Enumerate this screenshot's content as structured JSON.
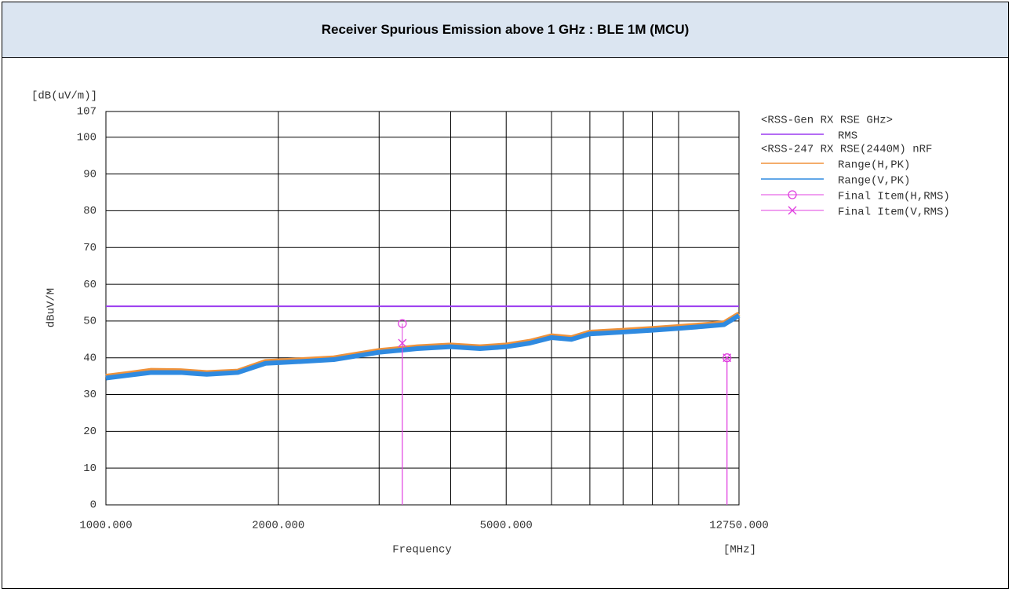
{
  "chart_data": {
    "type": "line",
    "title": "Receiver Spurious Emission above 1 GHz : BLE 1M (MCU)",
    "y_unit": "[dB(uV/m)]",
    "y_label": "dBuV/M",
    "x_label": "Frequency",
    "x_unit": "[MHz]",
    "x_log": true,
    "xlim": [
      1000,
      12750
    ],
    "xticks": [
      {
        "value": 1000,
        "label": "1000.000"
      },
      {
        "value": 2000,
        "label": "2000.000"
      },
      {
        "value": 5000,
        "label": "5000.000"
      },
      {
        "value": 12750,
        "label": "12750.000"
      }
    ],
    "xgrid": [
      3000,
      4000,
      6000,
      7000,
      8000,
      9000,
      10000
    ],
    "ylim": [
      0,
      107
    ],
    "yticks": [
      0,
      10,
      20,
      30,
      40,
      50,
      60,
      70,
      80,
      90,
      100,
      107
    ],
    "grid": true,
    "groups": [
      {
        "title": "<RSS-Gen RX RSE GHz>",
        "series": [
          {
            "name": "RMS",
            "kind": "line",
            "color": "#9b3cf0",
            "width": 2,
            "x": [
              1000,
              12750
            ],
            "values": [
              54,
              54
            ]
          }
        ]
      },
      {
        "title": "<RSS-247 RX RSE(2440M) nRF",
        "series": [
          {
            "name": "Range(H,PK)",
            "kind": "line",
            "color": "#f0923a",
            "width": 6,
            "x": [
              1000,
              1100,
              1200,
              1350,
              1500,
              1700,
              1900,
              2200,
              2500,
              3000,
              3500,
              4000,
              4500,
              5000,
              5500,
              6000,
              6500,
              7000,
              8000,
              9000,
              10000,
              11000,
              12000,
              12750
            ],
            "values": [
              35,
              35.8,
              36.6,
              36.5,
              36,
              36.4,
              39,
              39.5,
              40,
              42,
              43,
              43.5,
              43,
              43.5,
              44.5,
              46,
              45.5,
              47,
              47.5,
              48,
              48.5,
              49,
              49.5,
              52
            ]
          },
          {
            "name": "Range(V,PK)",
            "kind": "line",
            "color": "#2f8ae0",
            "width": 6,
            "x": [
              1000,
              1100,
              1200,
              1350,
              1500,
              1700,
              1900,
              2200,
              2500,
              3000,
              3500,
              4000,
              4500,
              5000,
              5500,
              6000,
              6500,
              7000,
              8000,
              9000,
              10000,
              11000,
              12000,
              12750
            ],
            "values": [
              34.5,
              35.3,
              36,
              36,
              35.5,
              36,
              38.5,
              39,
              39.5,
              41.5,
              42.5,
              43,
              42.5,
              43,
              44,
              45.5,
              45,
              46.5,
              47,
              47.5,
              48,
              48.5,
              49,
              51.5
            ]
          },
          {
            "name": "Final Item(H,RMS)",
            "kind": "points",
            "marker": "circle",
            "color": "#e040e0",
            "x": [
              3293,
              12150
            ],
            "values": [
              49.3,
              40
            ]
          },
          {
            "name": "Final Item(V,RMS)",
            "kind": "points",
            "marker": "cross",
            "color": "#e040e0",
            "x": [
              3293,
              12150
            ],
            "values": [
              44,
              40
            ]
          }
        ]
      }
    ]
  }
}
